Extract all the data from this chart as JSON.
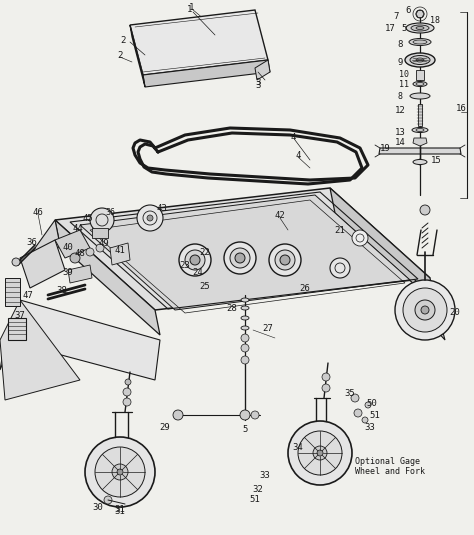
{
  "bg_color": "#f0f0ec",
  "line_color": "#1a1a1a",
  "text_color": "#1a1a1a",
  "figsize": [
    4.74,
    5.35
  ],
  "dpi": 100
}
